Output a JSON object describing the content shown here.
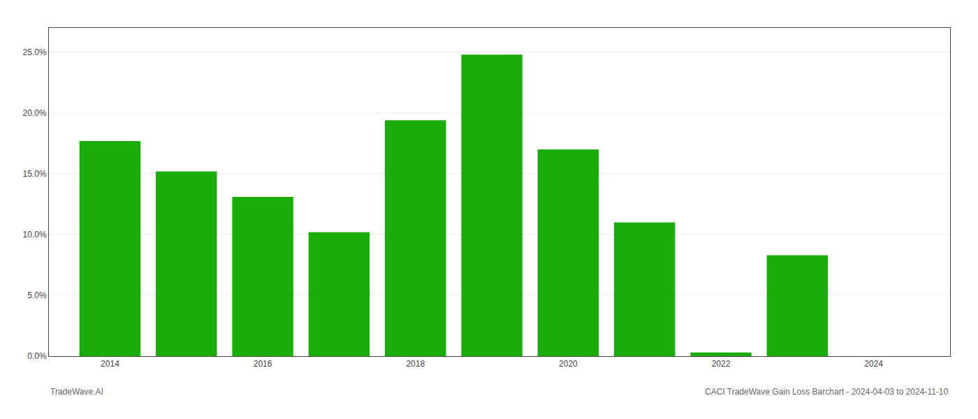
{
  "chart_data": {
    "type": "bar",
    "x": [
      2014,
      2015,
      2016,
      2017,
      2018,
      2019,
      2020,
      2021,
      2022,
      2023,
      2024
    ],
    "values": [
      0.177,
      0.152,
      0.131,
      0.102,
      0.194,
      0.248,
      0.17,
      0.11,
      0.003,
      0.083,
      0.0
    ],
    "color": "#1aac0a",
    "xlim": [
      2013.2,
      2025.0
    ],
    "xticks": [
      2014,
      2016,
      2018,
      2020,
      2022,
      2024
    ],
    "ylim": [
      0,
      0.27
    ],
    "yticks": [
      {
        "value": 0.0,
        "label": "0.0%"
      },
      {
        "value": 0.05,
        "label": "5.0%"
      },
      {
        "value": 0.1,
        "label": "10.0%"
      },
      {
        "value": 0.15,
        "label": "15.0%"
      },
      {
        "value": 0.2,
        "label": "20.0%"
      },
      {
        "value": 0.25,
        "label": "25.0%"
      }
    ],
    "grid": true,
    "annotations": [
      "TradeWave.AI",
      "CACI TradeWave Gain Loss Barchart - 2024-04-03 to 2024-11-10"
    ]
  }
}
